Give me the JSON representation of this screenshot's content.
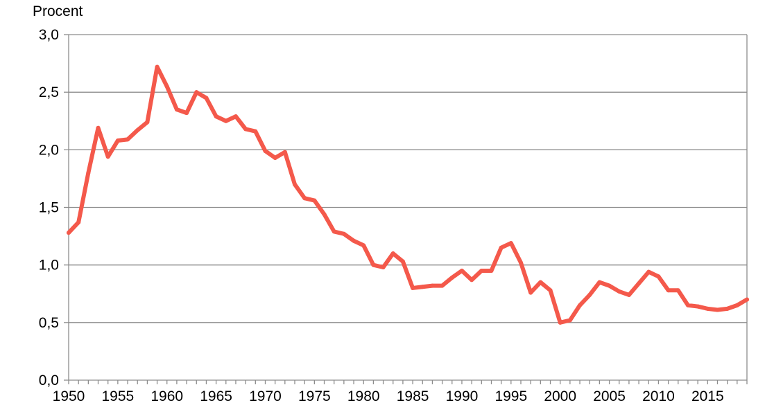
{
  "chart_data": {
    "type": "line",
    "title": "",
    "ylabel": "Procent",
    "xlabel": "",
    "xlim": [
      1950,
      2019
    ],
    "ylim": [
      0,
      3
    ],
    "x_ticks": [
      1950,
      1955,
      1960,
      1965,
      1970,
      1975,
      1980,
      1985,
      1990,
      1995,
      2000,
      2005,
      2010,
      2015
    ],
    "x_tick_labels": [
      "1950",
      "1955",
      "1960",
      "1965",
      "1970",
      "1975",
      "1980",
      "1985",
      "1990",
      "1995",
      "2000",
      "2005",
      "2010",
      "2015"
    ],
    "y_ticks": [
      0,
      0.5,
      1,
      1.5,
      2,
      2.5,
      3
    ],
    "y_tick_labels": [
      "0,0",
      "0,5",
      "1,0",
      "1,5",
      "2,0",
      "2,5",
      "3,0"
    ],
    "grid": "horizontal",
    "legend": "none",
    "line_color": "#f4594b",
    "grid_color": "#8c8c8c",
    "series": [
      {
        "x": [
          1950,
          1951,
          1952,
          1953,
          1954,
          1955,
          1956,
          1957,
          1958,
          1959,
          1960,
          1961,
          1962,
          1963,
          1964,
          1965,
          1966,
          1967,
          1968,
          1969,
          1970,
          1971,
          1972,
          1973,
          1974,
          1975,
          1976,
          1977,
          1978,
          1979,
          1980,
          1981,
          1982,
          1983,
          1984,
          1985,
          1986,
          1987,
          1988,
          1989,
          1990,
          1991,
          1992,
          1993,
          1994,
          1995,
          1996,
          1997,
          1998,
          1999,
          2000,
          2001,
          2002,
          2003,
          2004,
          2005,
          2006,
          2007,
          2008,
          2009,
          2010,
          2011,
          2012,
          2013,
          2014,
          2015,
          2016,
          2017,
          2018,
          2019
        ],
        "values": [
          1.28,
          1.37,
          1.8,
          2.19,
          1.94,
          2.08,
          2.09,
          2.17,
          2.24,
          2.72,
          2.55,
          2.35,
          2.32,
          2.5,
          2.45,
          2.29,
          2.25,
          2.29,
          2.18,
          2.16,
          1.99,
          1.93,
          1.98,
          1.7,
          1.58,
          1.56,
          1.44,
          1.29,
          1.27,
          1.21,
          1.17,
          1.0,
          0.98,
          1.1,
          1.03,
          0.8,
          0.81,
          0.82,
          0.82,
          0.89,
          0.95,
          0.87,
          0.95,
          0.95,
          1.15,
          1.19,
          1.02,
          0.76,
          0.85,
          0.78,
          0.5,
          0.52,
          0.65,
          0.74,
          0.85,
          0.82,
          0.77,
          0.74,
          0.84,
          0.94,
          0.9,
          0.78,
          0.78,
          0.65,
          0.64,
          0.62,
          0.61,
          0.62,
          0.65,
          0.7
        ]
      }
    ]
  }
}
